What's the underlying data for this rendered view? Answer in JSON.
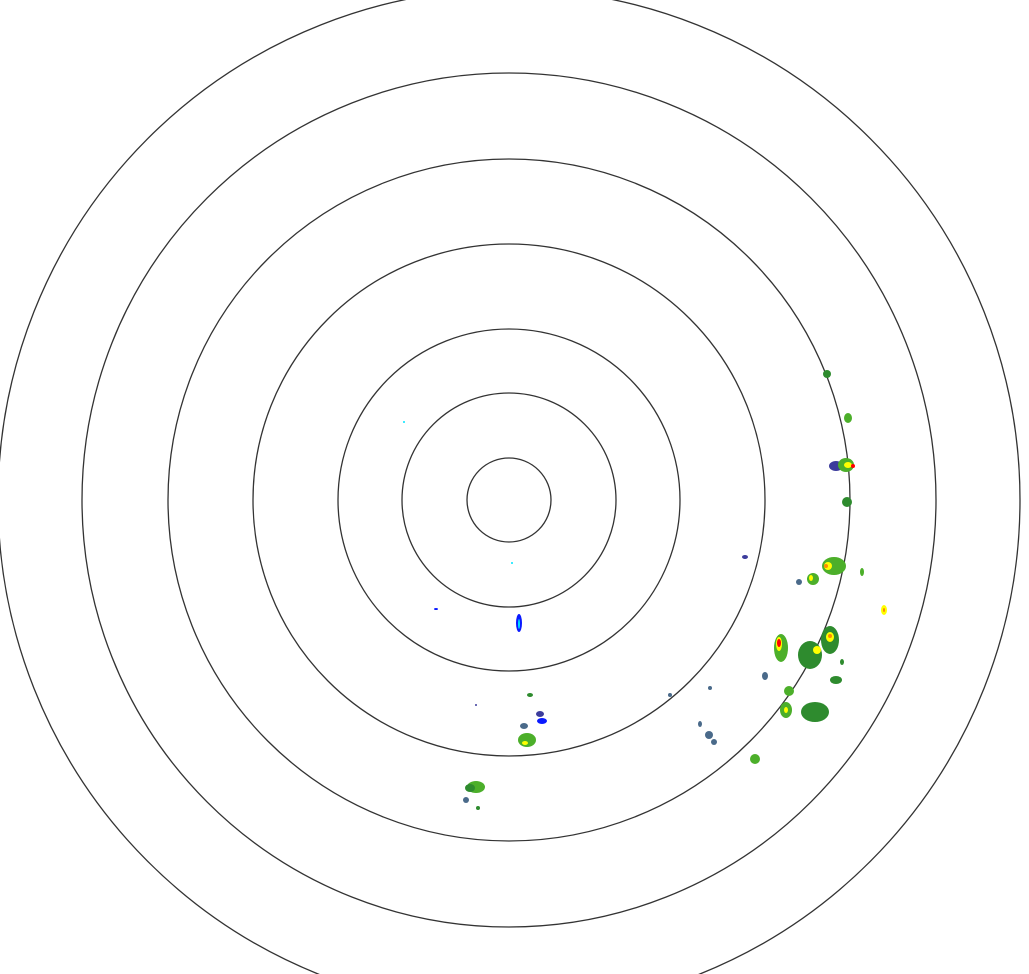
{
  "radar": {
    "background_color": "#ffffff",
    "ring_color": "#333333",
    "ring_count": 7,
    "reflectivity_colors": [
      "#00e5ff",
      "#0a1aff",
      "#3c3c9c",
      "#4a6a8a",
      "#2e8b2e",
      "#4caf2a",
      "#9acd32",
      "#ffff00",
      "#ff8c00",
      "#ff0000"
    ]
  }
}
